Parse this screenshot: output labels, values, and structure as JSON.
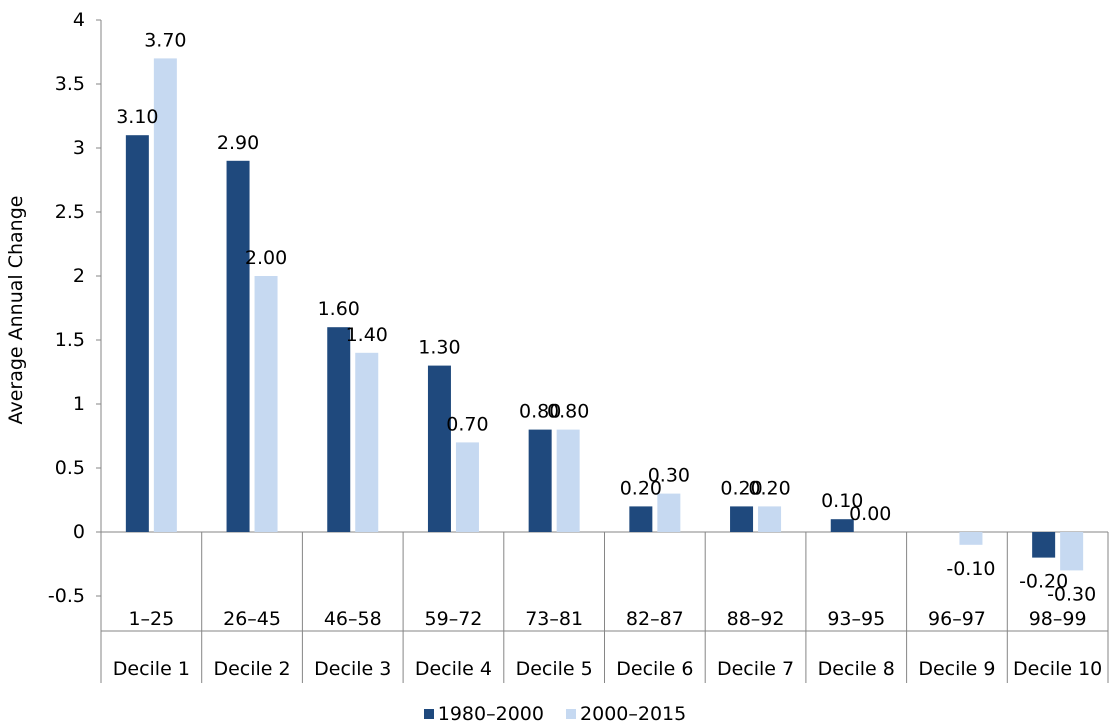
{
  "chart_data": {
    "type": "bar",
    "ylabel": "Average Annual Change",
    "xlabel": "",
    "title": "",
    "ylim": [
      -0.5,
      4
    ],
    "yticks": [
      -0.5,
      0,
      0.5,
      1,
      1.5,
      2,
      2.5,
      3,
      3.5,
      4
    ],
    "ytick_labels": [
      "-0.5",
      "0",
      "0.5",
      "1",
      "1.5",
      "2",
      "2.5",
      "3",
      "3.5",
      "4"
    ],
    "categories": [
      "1–25",
      "26–45",
      "46–58",
      "59–72",
      "73–81",
      "82–87",
      "88–92",
      "93–95",
      "96–97",
      "98–99"
    ],
    "groups": [
      "Decile 1",
      "Decile 2",
      "Decile 3",
      "Decile 4",
      "Decile 5",
      "Decile 6",
      "Decile 7",
      "Decile 8",
      "Decile 9",
      "Decile 10"
    ],
    "series": [
      {
        "name": "1980–2000",
        "color": "#1f497d",
        "values": [
          3.1,
          2.9,
          1.6,
          1.3,
          0.8,
          0.2,
          0.2,
          0.1,
          null,
          -0.2
        ],
        "labels": [
          "3.10",
          "2.90",
          "1.60",
          "1.30",
          "0.80",
          "0.20",
          "0.20",
          "0.10",
          "",
          "-0.20"
        ]
      },
      {
        "name": "2000–2015",
        "color": "#c6d9f1",
        "values": [
          3.7,
          2.0,
          1.4,
          0.7,
          0.8,
          0.3,
          0.2,
          0.0,
          -0.1,
          -0.3
        ],
        "labels": [
          "3.70",
          "2.00",
          "1.40",
          "0.70",
          "0.80",
          "0.30",
          "0.20",
          "0.00",
          "-0.10",
          "-0.30"
        ]
      }
    ],
    "grid": false,
    "legend": "bottom-center"
  }
}
